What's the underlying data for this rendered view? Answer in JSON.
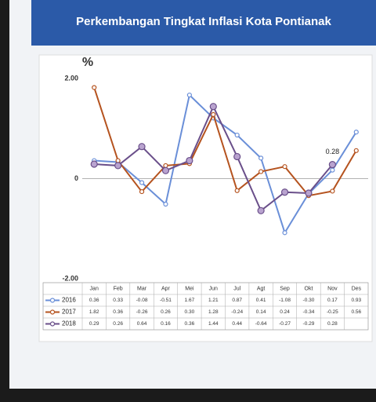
{
  "chart_data": {
    "type": "line",
    "title": "Perkembangan Tingkat Inflasi Kota Pontianak",
    "y_label": "%",
    "categories": [
      "Jan",
      "Feb",
      "Mar",
      "Apr",
      "Mei",
      "Jun",
      "Jul",
      "Agt",
      "Sep",
      "Okt",
      "Nov",
      "Des"
    ],
    "series": [
      {
        "name": "2016",
        "color": "#6a8fd8",
        "values": [
          0.36,
          0.33,
          -0.08,
          -0.51,
          1.67,
          1.21,
          0.87,
          0.41,
          -1.08,
          -0.3,
          0.17,
          0.93
        ],
        "value_labels": [
          "0.36",
          "0.33",
          "-0.08",
          "-0.51",
          "1.67",
          "1.21",
          "0.87",
          "0.41",
          "-1.08",
          "-0.30",
          "0.17",
          "0.93"
        ]
      },
      {
        "name": "2017",
        "color": "#b5531f",
        "values": [
          1.82,
          0.36,
          -0.26,
          0.26,
          0.3,
          1.28,
          -0.24,
          0.14,
          0.24,
          -0.34,
          -0.25,
          0.56
        ],
        "value_labels": [
          "1.82",
          "0.36",
          "-0.26",
          "0.26",
          "0.30",
          "1.28",
          "-0.24",
          "0.14",
          "0.24",
          "-0.34",
          "-0.25",
          "0.56"
        ]
      },
      {
        "name": "2018",
        "color": "#6a4f8a",
        "values": [
          0.29,
          0.26,
          0.64,
          0.16,
          0.36,
          1.44,
          0.44,
          -0.64,
          -0.27,
          -0.29,
          0.28,
          null
        ],
        "value_labels": [
          "0.29",
          "0.26",
          "0.64",
          "0.16",
          "0.36",
          "1.44",
          "0.44",
          "-0.64",
          "-0.27",
          "-0.29",
          "0.28",
          null
        ]
      }
    ],
    "annotation": "0.28",
    "ylim": [
      -2,
      2
    ],
    "yticks": [
      {
        "value": 2,
        "label": "2.00"
      },
      0,
      {
        "value": -2,
        "label": "-2.00"
      }
    ]
  }
}
